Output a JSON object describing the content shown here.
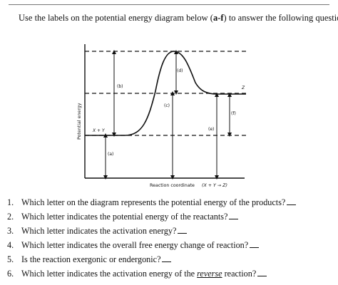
{
  "instructions": {
    "pre": "Use the labels on the potential energy diagram below (",
    "bold": "a-f",
    "post": ") to answer the following questions."
  },
  "diagram": {
    "y_axis_label": "Potential energy",
    "x_axis_label": "Reaction coordinate",
    "x_axis_eq": "(X + Y → Z)",
    "reactants_label": "X + Y",
    "product_label": "Z",
    "labels": {
      "a": "(a)",
      "b": "(b)",
      "c": "(c)",
      "d": "(d)",
      "e": "(e)",
      "f": "(f)"
    }
  },
  "questions": [
    {
      "num": "1.",
      "text": "Which letter on the diagram represents the potential energy of the products?"
    },
    {
      "num": "2.",
      "text": "Which letter indicates the potential energy of the reactants?"
    },
    {
      "num": "3.",
      "text": "Which letter indicates the activation energy?"
    },
    {
      "num": "4.",
      "text": "Which letter indicates the overall free energy change of reaction?"
    },
    {
      "num": "5.",
      "text": "Is the reaction exergonic or endergonic?"
    },
    {
      "num": "6.",
      "pre": "Which letter indicates the activation energy of the ",
      "em": "reverse",
      "post": " reaction?"
    }
  ]
}
